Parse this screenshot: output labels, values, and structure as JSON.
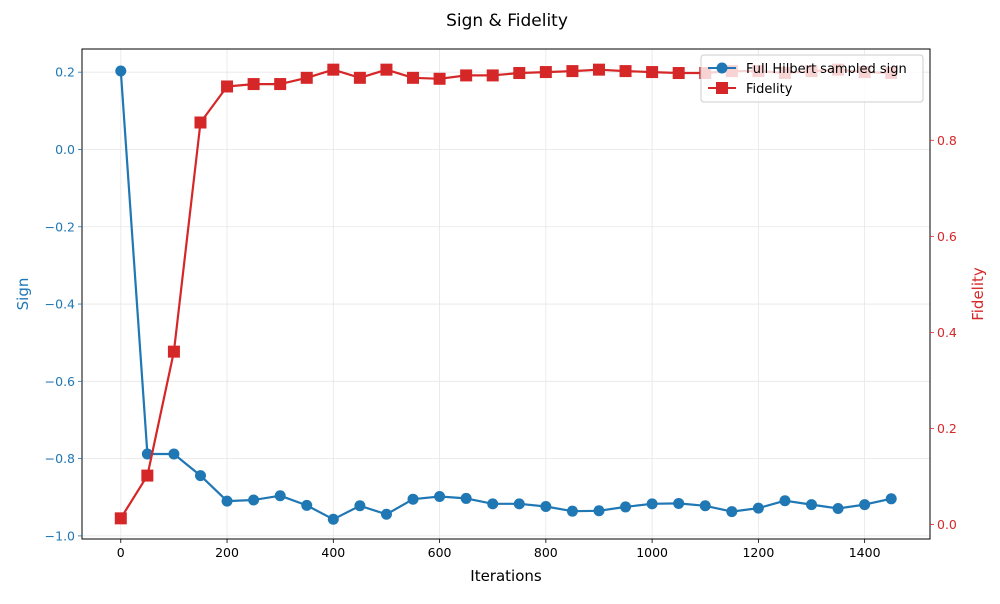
{
  "chart_data": {
    "type": "line",
    "title": "Sign & Fidelity",
    "xlabel": "Iterations",
    "ylabel_left": "Sign",
    "ylabel_right": "Fidelity",
    "xlim": [
      -73,
      1523
    ],
    "ylim_left": [
      -1.008,
      0.26
    ],
    "ylim_right": [
      -0.03,
      0.99
    ],
    "x_ticks": [
      0,
      200,
      400,
      600,
      800,
      1000,
      1200,
      1400
    ],
    "x_tick_labels": [
      "0",
      "200",
      "400",
      "600",
      "800",
      "1000",
      "1200",
      "1400"
    ],
    "y_left_ticks": [
      0.2,
      0.0,
      -0.2,
      -0.4,
      -0.6,
      -0.8,
      -1.0
    ],
    "y_left_tick_labels": [
      "0.2",
      "0.0",
      "−0.2",
      "−0.4",
      "−0.6",
      "−0.8",
      "−1.0"
    ],
    "y_right_ticks": [
      0.0,
      0.2,
      0.4,
      0.6,
      0.8
    ],
    "y_right_tick_labels": [
      "0.0",
      "0.2",
      "0.4",
      "0.6",
      "0.8"
    ],
    "grid": true,
    "legend_position": "top-right",
    "x": [
      0,
      50,
      100,
      150,
      200,
      250,
      300,
      350,
      400,
      450,
      500,
      550,
      600,
      650,
      700,
      750,
      800,
      850,
      900,
      950,
      1000,
      1050,
      1100,
      1150,
      1200,
      1250,
      1300,
      1350,
      1400,
      1450
    ],
    "series": [
      {
        "name": "Full Hilbert sampled sign",
        "axis": "left",
        "color": "#1f77b4",
        "marker": "circle",
        "values": [
          0.203,
          -0.788,
          -0.788,
          -0.844,
          -0.91,
          -0.907,
          -0.896,
          -0.921,
          -0.957,
          -0.922,
          -0.944,
          -0.905,
          -0.898,
          -0.903,
          -0.917,
          -0.917,
          -0.924,
          -0.936,
          -0.935,
          -0.925,
          -0.917,
          -0.916,
          -0.922,
          -0.937,
          -0.928,
          -0.909,
          -0.919,
          -0.929,
          -0.919,
          -0.904
        ]
      },
      {
        "name": "Fidelity",
        "axis": "right",
        "color": "#d62728",
        "marker": "square",
        "values": [
          0.013,
          0.102,
          0.36,
          0.837,
          0.912,
          0.917,
          0.917,
          0.93,
          0.947,
          0.93,
          0.947,
          0.93,
          0.928,
          0.935,
          0.935,
          0.94,
          0.942,
          0.944,
          0.947,
          0.944,
          0.942,
          0.94,
          0.94,
          0.944,
          0.944,
          0.94,
          0.944,
          0.947,
          0.942,
          0.94
        ]
      }
    ]
  }
}
